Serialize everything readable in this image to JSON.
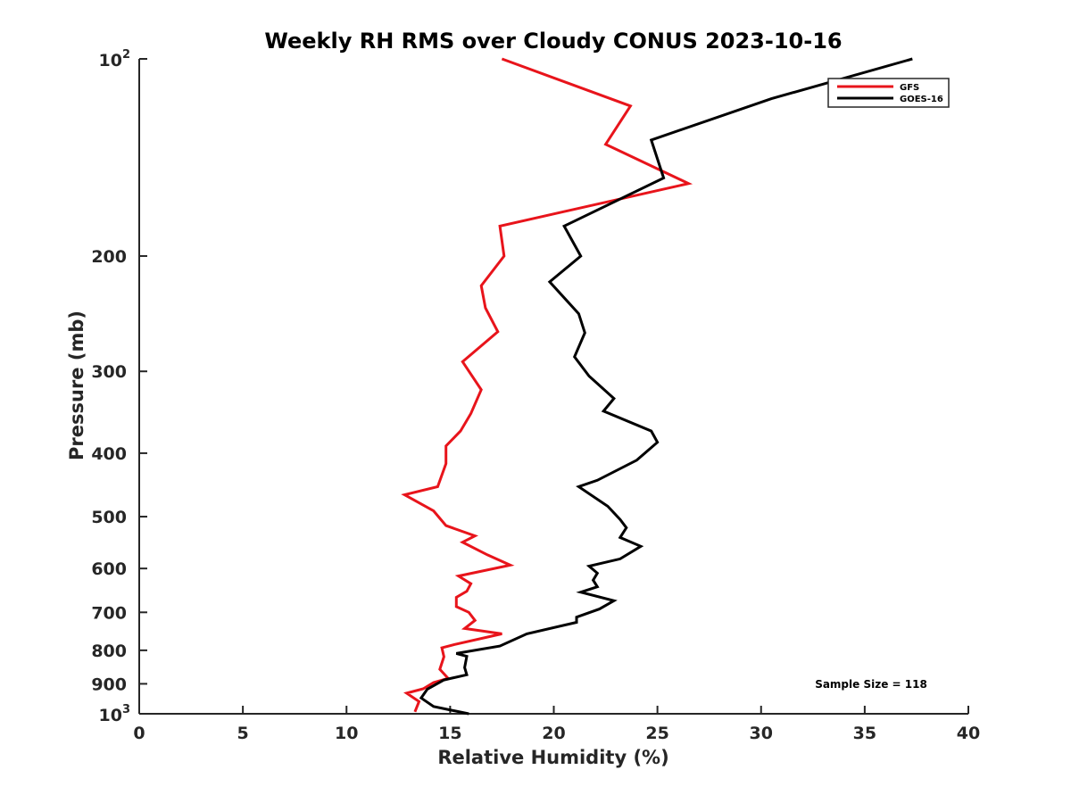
{
  "chart_data": {
    "type": "line",
    "title": "Weekly RH RMS over Cloudy CONUS 2023-10-16",
    "xlabel": "Relative Humidity (%)",
    "ylabel": "Pressure (mb)",
    "xlim": [
      0,
      40
    ],
    "ylim": [
      100,
      1000
    ],
    "y_scale": "log",
    "y_reversed": true,
    "x_ticks": [
      0,
      5,
      10,
      15,
      20,
      25,
      30,
      35,
      40
    ],
    "x_tick_labels": [
      "0",
      "5",
      "10",
      "15",
      "20",
      "25",
      "30",
      "35",
      "40"
    ],
    "y_ticks": [
      200,
      300,
      400,
      500,
      600,
      700,
      800,
      900
    ],
    "y_tick_labels": [
      "200",
      "300",
      "400",
      "500",
      "600",
      "700",
      "800",
      "900"
    ],
    "y_power_ticks": [
      {
        "value": 100,
        "base": "10",
        "exp": "2"
      },
      {
        "value": 1000,
        "base": "10",
        "exp": "3"
      }
    ],
    "grid": false,
    "legend": "top-right",
    "annotation": "Sample Size = 118",
    "series": [
      {
        "name": "GFS",
        "color": "#e8141b",
        "points": [
          [
            17.5,
            100
          ],
          [
            23.7,
            118
          ],
          [
            22.5,
            135
          ],
          [
            26.5,
            155
          ],
          [
            17.4,
            180
          ],
          [
            17.6,
            200
          ],
          [
            16.5,
            222
          ],
          [
            16.7,
            240
          ],
          [
            17.3,
            261
          ],
          [
            15.6,
            290
          ],
          [
            16.5,
            320
          ],
          [
            16.0,
            348
          ],
          [
            15.5,
            370
          ],
          [
            14.8,
            390
          ],
          [
            14.8,
            415
          ],
          [
            14.4,
            450
          ],
          [
            12.8,
            463
          ],
          [
            14.2,
            490
          ],
          [
            14.8,
            516
          ],
          [
            16.2,
            535
          ],
          [
            15.6,
            547
          ],
          [
            16.8,
            572
          ],
          [
            17.9,
            593
          ],
          [
            15.4,
            616
          ],
          [
            16.0,
            633
          ],
          [
            15.8,
            650
          ],
          [
            15.3,
            664
          ],
          [
            15.3,
            686
          ],
          [
            15.9,
            700
          ],
          [
            16.2,
            720
          ],
          [
            15.7,
            741
          ],
          [
            17.5,
            755
          ],
          [
            15.2,
            784
          ],
          [
            14.6,
            793
          ],
          [
            14.7,
            818
          ],
          [
            14.5,
            855
          ],
          [
            14.9,
            883
          ],
          [
            14.2,
            896
          ],
          [
            13.7,
            916
          ],
          [
            12.9,
            930
          ],
          [
            13.5,
            958
          ],
          [
            13.3,
            993
          ]
        ]
      },
      {
        "name": "GOES-16",
        "color": "#000000",
        "points": [
          [
            37.3,
            100
          ],
          [
            30.5,
            115
          ],
          [
            24.7,
            133
          ],
          [
            25.3,
            152
          ],
          [
            20.5,
            180
          ],
          [
            21.3,
            200
          ],
          [
            19.8,
            219
          ],
          [
            21.2,
            245
          ],
          [
            21.5,
            262
          ],
          [
            21.0,
            285
          ],
          [
            21.7,
            305
          ],
          [
            22.9,
            330
          ],
          [
            22.4,
            345
          ],
          [
            24.7,
            370
          ],
          [
            25.0,
            385
          ],
          [
            24.0,
            410
          ],
          [
            22.1,
            440
          ],
          [
            21.2,
            450
          ],
          [
            22.6,
            482
          ],
          [
            23.2,
            505
          ],
          [
            23.5,
            520
          ],
          [
            23.2,
            538
          ],
          [
            24.2,
            555
          ],
          [
            23.2,
            580
          ],
          [
            21.7,
            595
          ],
          [
            22.1,
            610
          ],
          [
            21.9,
            625
          ],
          [
            22.1,
            640
          ],
          [
            21.3,
            652
          ],
          [
            22.9,
            672
          ],
          [
            22.2,
            692
          ],
          [
            21.1,
            712
          ],
          [
            21.1,
            725
          ],
          [
            18.7,
            755
          ],
          [
            17.4,
            788
          ],
          [
            15.3,
            809
          ],
          [
            15.8,
            817
          ],
          [
            15.7,
            850
          ],
          [
            15.8,
            872
          ],
          [
            14.7,
            888
          ],
          [
            13.9,
            917
          ],
          [
            13.6,
            946
          ],
          [
            14.2,
            975
          ],
          [
            15.9,
            1000
          ]
        ]
      }
    ]
  }
}
